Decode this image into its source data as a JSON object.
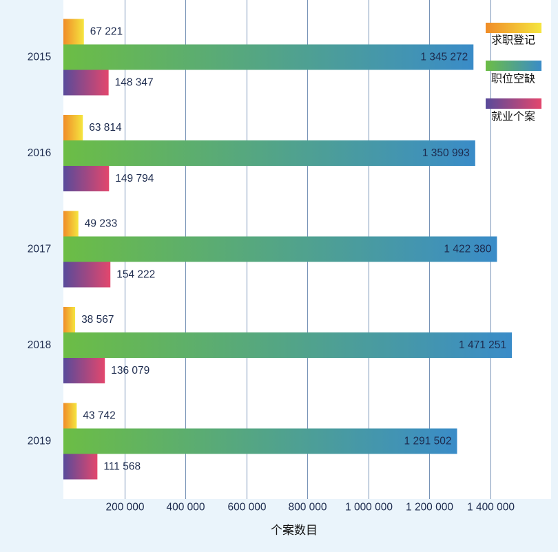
{
  "chart_data": {
    "type": "bar",
    "orientation": "horizontal",
    "categories": [
      "2015",
      "2016",
      "2017",
      "2018",
      "2019"
    ],
    "series": [
      {
        "name": "求职登记",
        "values": [
          67221,
          63814,
          49233,
          38567,
          43742
        ],
        "colors": [
          "#f08c28",
          "#f5e53f"
        ]
      },
      {
        "name": "职位空缺",
        "values": [
          1345272,
          1350993,
          1422380,
          1471251,
          1291502
        ],
        "colors": [
          "#6cbd45",
          "#3a8cc8"
        ]
      },
      {
        "name": "就业个案",
        "values": [
          148347,
          149794,
          154222,
          136079,
          111568
        ],
        "colors": [
          "#584a9a",
          "#e3476d"
        ]
      }
    ],
    "xlabel": "个案数目",
    "xticks": [
      200000,
      400000,
      600000,
      800000,
      1000000,
      1200000,
      1400000
    ],
    "xlim": [
      0,
      1600000
    ],
    "grid": true,
    "legend": "top-right"
  },
  "colors": {
    "background": "#eaf4fb",
    "plot_area": "#ffffff",
    "gridline": "#7692b6"
  }
}
